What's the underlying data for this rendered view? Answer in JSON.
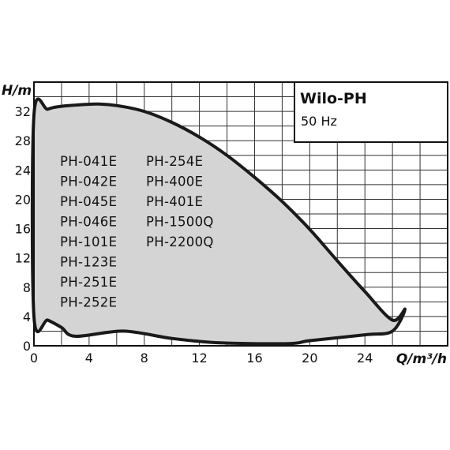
{
  "chart_data": {
    "type": "area",
    "title": "Wilo-PH",
    "subtitle": "50 Hz",
    "xlabel": "Q/m³/h",
    "ylabel": "H/m",
    "xlim": [
      0,
      30
    ],
    "ylim": [
      0,
      36
    ],
    "x_ticks": [
      0,
      4,
      8,
      12,
      16,
      20,
      24
    ],
    "y_ticks": [
      0,
      4,
      8,
      12,
      16,
      20,
      24,
      28,
      32
    ],
    "grid": true,
    "series": [
      {
        "role": "envelope-upper",
        "points": [
          [
            0,
            31.5
          ],
          [
            1,
            32.3
          ],
          [
            2,
            32.7
          ],
          [
            4.5,
            33
          ],
          [
            6,
            32.8
          ],
          [
            8,
            32
          ],
          [
            10,
            30.5
          ],
          [
            12,
            28.5
          ],
          [
            14,
            26
          ],
          [
            16,
            23
          ],
          [
            18,
            19.7
          ],
          [
            20,
            15.9
          ],
          [
            22,
            11.6
          ],
          [
            24,
            7.4
          ],
          [
            26,
            3.5
          ],
          [
            26.9,
            5
          ]
        ]
      },
      {
        "role": "envelope-lower",
        "points": [
          [
            26.9,
            5
          ],
          [
            26,
            2
          ],
          [
            24,
            1.5
          ],
          [
            20,
            0.7
          ],
          [
            18.5,
            0.3
          ],
          [
            13.5,
            0.4
          ],
          [
            10,
            1
          ],
          [
            6.5,
            2
          ],
          [
            3,
            1.3
          ],
          [
            2,
            2.5
          ],
          [
            1,
            3.5
          ],
          [
            0,
            4
          ]
        ]
      }
    ],
    "models_column_1": [
      "PH-041E",
      "PH-042E",
      "PH-045E",
      "PH-046E",
      "PH-101E",
      "PH-123E",
      "PH-251E",
      "PH-252E"
    ],
    "models_column_2": [
      "PH-254E",
      "PH-400E",
      "PH-401E",
      "PH-1500Q",
      "PH-2200Q"
    ],
    "fill_color": "#d4d4d4",
    "line_color": "#1a1a1a"
  }
}
